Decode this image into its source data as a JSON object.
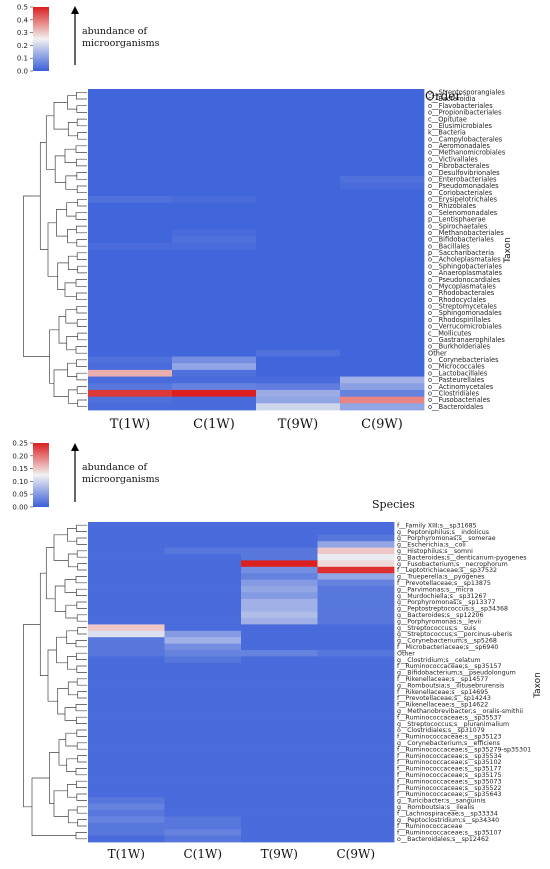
{
  "chart_data": [
    {
      "type": "heatmap",
      "title": "Order",
      "ylabel": "Taxon",
      "legend_title": "abundance of microorganisms",
      "colorbar": {
        "ticks": [
          "0.5",
          "0.4",
          "0.3",
          "0.2",
          "0.1",
          "0.0"
        ],
        "range": [
          0,
          0.5
        ],
        "colors": [
          "#3a5fd9",
          "#f2f2f2",
          "#dc1f1f"
        ]
      },
      "columns": [
        "T(1W)",
        "C(1W)",
        "T(9W)",
        "C(9W)"
      ],
      "rows": [
        "o__Streptosporangiales",
        "c__Bacteroidia",
        "o__Flavobacteriales",
        "o__Propionibacteriales",
        "c__Opitutae",
        "o__Elusimicrobiales",
        "k__Bacteria",
        "o__Campylobacterales",
        "o__Aeromonadales",
        "o__Methanomicrobiales",
        "o__Victivallales",
        "o__Fibrobacterales",
        "o__Desulfovibrionales",
        "o__Enterobacteriales",
        "o__Pseudomonadales",
        "o__Coriobacteriales",
        "o__Erysipelotrichales",
        "o__Rhizobiales",
        "o__Selenomonadales",
        "p__Lentisphaerae",
        "o__Spirochaetales",
        "o__Methanobacteriales",
        "o__Bifidobacteriales",
        "o__Bacillales",
        "p__Saccharibacteria",
        "o__Acholeplasmatales",
        "o__Sphingobacteriales",
        "o__Anaeroplasmatales",
        "o__Pseudonocardiales",
        "o__Mycoplasmatales",
        "o__Rhodobacterales",
        "o__Rhodocyclales",
        "o__Streptomycetales",
        "o__Sphingomonadales",
        "o__Rhodospirillales",
        "o__Verrucomicrobiales",
        "c__Mollicutes",
        "o__Gastranaerophilales",
        "o__Burkholderiales",
        "Other",
        "o__Corynebacteriales",
        "o__Micrococcales",
        "o__Lactobacillales",
        "o__Pasteurellales",
        "o__Actinomycetales",
        "o__Clostridiales",
        "o__Fusobacteriales",
        "o__Bacteroidales"
      ],
      "values": [
        [
          0.01,
          0.01,
          0.01,
          0.01
        ],
        [
          0.01,
          0.01,
          0.01,
          0.01
        ],
        [
          0.01,
          0.01,
          0.01,
          0.01
        ],
        [
          0.01,
          0.01,
          0.01,
          0.01
        ],
        [
          0.01,
          0.01,
          0.01,
          0.01
        ],
        [
          0.01,
          0.01,
          0.01,
          0.01
        ],
        [
          0.01,
          0.01,
          0.01,
          0.01
        ],
        [
          0.01,
          0.01,
          0.01,
          0.01
        ],
        [
          0.01,
          0.01,
          0.01,
          0.01
        ],
        [
          0.01,
          0.01,
          0.01,
          0.01
        ],
        [
          0.01,
          0.01,
          0.01,
          0.01
        ],
        [
          0.01,
          0.01,
          0.01,
          0.01
        ],
        [
          0.01,
          0.01,
          0.01,
          0.01
        ],
        [
          0.01,
          0.01,
          0.01,
          0.03
        ],
        [
          0.01,
          0.01,
          0.01,
          0.02
        ],
        [
          0.01,
          0.01,
          0.01,
          0.01
        ],
        [
          0.03,
          0.02,
          0.01,
          0.01
        ],
        [
          0.01,
          0.01,
          0.01,
          0.01
        ],
        [
          0.01,
          0.01,
          0.01,
          0.01
        ],
        [
          0.01,
          0.01,
          0.01,
          0.01
        ],
        [
          0.01,
          0.01,
          0.01,
          0.01
        ],
        [
          0.01,
          0.02,
          0.01,
          0.01
        ],
        [
          0.01,
          0.03,
          0.01,
          0.01
        ],
        [
          0.02,
          0.02,
          0.01,
          0.01
        ],
        [
          0.01,
          0.01,
          0.01,
          0.01
        ],
        [
          0.01,
          0.01,
          0.01,
          0.01
        ],
        [
          0.01,
          0.01,
          0.01,
          0.01
        ],
        [
          0.01,
          0.01,
          0.01,
          0.01
        ],
        [
          0.01,
          0.01,
          0.01,
          0.01
        ],
        [
          0.01,
          0.01,
          0.01,
          0.01
        ],
        [
          0.01,
          0.01,
          0.01,
          0.01
        ],
        [
          0.01,
          0.01,
          0.01,
          0.01
        ],
        [
          0.01,
          0.01,
          0.01,
          0.01
        ],
        [
          0.01,
          0.01,
          0.01,
          0.01
        ],
        [
          0.01,
          0.01,
          0.01,
          0.01
        ],
        [
          0.01,
          0.01,
          0.01,
          0.01
        ],
        [
          0.01,
          0.01,
          0.01,
          0.01
        ],
        [
          0.01,
          0.01,
          0.01,
          0.01
        ],
        [
          0.01,
          0.01,
          0.01,
          0.01
        ],
        [
          0.01,
          0.01,
          0.03,
          0.01
        ],
        [
          0.03,
          0.08,
          0.01,
          0.01
        ],
        [
          0.02,
          0.12,
          0.01,
          0.01
        ],
        [
          0.33,
          0.03,
          0.01,
          0.01
        ],
        [
          0.02,
          0.02,
          0.02,
          0.14
        ],
        [
          0.04,
          0.06,
          0.05,
          0.11
        ],
        [
          0.47,
          0.5,
          0.13,
          0.06
        ],
        [
          0.03,
          0.02,
          0.12,
          0.38
        ],
        [
          0.02,
          0.02,
          0.2,
          0.12
        ]
      ]
    },
    {
      "type": "heatmap",
      "title": "Species",
      "ylabel": "Taxon",
      "legend_title": "abundance of microorganisms",
      "colorbar": {
        "ticks": [
          "0.25",
          "0.20",
          "0.15",
          "0.10",
          "0.05",
          "0.00"
        ],
        "range": [
          0,
          0.25
        ],
        "colors": [
          "#3a5fd9",
          "#f2f2f2",
          "#dc1f1f"
        ]
      },
      "columns": [
        "T(1W)",
        "C(1W)",
        "T(9W)",
        "C(9W)"
      ],
      "rows": [
        "f__Family XIII;s__sp31685",
        "g__Peptoniphilus;s__indolicus",
        "g__Porphyromonas;s__somerae",
        "g__Escherichia;s__coli",
        "g__Histophilus;s__somni",
        "g__Bacteroides;s__denticanum-pyogenes",
        "g__Fusobacterium;s__necrophorum",
        "f__Leptotrichiaceae;s__sp37532",
        "g__Trueperella;s__pyogenes",
        "f__Prevotellaceae;s__sp13875",
        "g__Parvimonas;s__micra",
        "g__Murdochiella;s__sp31267",
        "g__Porphyromonas;s__sp13377",
        "g__Peptostreptococcus;s__sp34368",
        "g__Bacteroides;s__sp12206",
        "g__Porphyromonas;s__levii",
        "g__Streptococcus;s__suis",
        "g__Streptococcus;s__porcinus-uberis",
        "g__Corynebacterium;s__sp5268",
        "f__Microbacteriaceae;s__sp6940",
        "Other",
        "g__Clostridium;s__celatum",
        "f__Ruminococcaceae;s__sp35157",
        "g__Bifidobacterium;s__pseudolongum",
        "f__Rikenellaceae;s__sp14577",
        "g__Romboutsia;s__ilitusebrurensis",
        "f__Rikenellaceae;s__sp14695",
        "f__Prevotellaceae;s__sp14243",
        "f__Rikenellaceae;s__sp14622",
        "g__Methanobrevibacter;s__oralis-smithii",
        "f__Ruminococcaceae;s__sp35537",
        "g__Streptococcus;s__pluranimalium",
        "o__Clostridiales;s__sp31079",
        "f__Ruminococcaceae;s__sp35123",
        "g__Corynebacterium;s__efficiens",
        "f__Ruminococcaceae;s__sp35279-sp35301",
        "f__Ruminococcaceae;s__sp35534",
        "f__Ruminococcaceae;s__sp35102",
        "f__Ruminococcaceae;s__sp35177",
        "f__Ruminococcaceae;s__sp35175",
        "f__Ruminococcaceae;s__sp35073",
        "f__Ruminococcaceae;s__sp35522",
        "f__Ruminococcaceae;s__sp35643",
        "g__Turicibacter;s__sanguinis",
        "g__Romboutsia;s__ilealis",
        "f__Lachnospiraceae;s__sp33334",
        "g__Peptoclostridium;s__sp34340",
        "f__Ruminococcaceae",
        "f__Ruminococcaceae;s__sp35107",
        "o__Bacteroidales;s__sp12462"
      ],
      "values": [
        [
          0.01,
          0.01,
          0.01,
          0.01
        ],
        [
          0.01,
          0.01,
          0.01,
          0.01
        ],
        [
          0.01,
          0.01,
          0.01,
          0.02
        ],
        [
          0.01,
          0.01,
          0.01,
          0.06
        ],
        [
          0.01,
          0.02,
          0.02,
          0.15
        ],
        [
          0.01,
          0.01,
          0.02,
          0.12
        ],
        [
          0.01,
          0.01,
          0.25,
          0.14
        ],
        [
          0.01,
          0.01,
          0.04,
          0.24
        ],
        [
          0.01,
          0.01,
          0.03,
          0.06
        ],
        [
          0.01,
          0.01,
          0.05,
          0.03
        ],
        [
          0.01,
          0.01,
          0.06,
          0.02
        ],
        [
          0.01,
          0.01,
          0.05,
          0.02
        ],
        [
          0.01,
          0.01,
          0.07,
          0.02
        ],
        [
          0.01,
          0.01,
          0.07,
          0.02
        ],
        [
          0.01,
          0.01,
          0.08,
          0.02
        ],
        [
          0.01,
          0.01,
          0.07,
          0.02
        ],
        [
          0.15,
          0.01,
          0.01,
          0.01
        ],
        [
          0.11,
          0.05,
          0.01,
          0.01
        ],
        [
          0.02,
          0.07,
          0.01,
          0.01
        ],
        [
          0.02,
          0.04,
          0.01,
          0.01
        ],
        [
          0.02,
          0.03,
          0.03,
          0.02
        ],
        [
          0.01,
          0.02,
          0.01,
          0.01
        ],
        [
          0.01,
          0.01,
          0.01,
          0.01
        ],
        [
          0.01,
          0.01,
          0.01,
          0.01
        ],
        [
          0.01,
          0.01,
          0.01,
          0.01
        ],
        [
          0.01,
          0.01,
          0.01,
          0.01
        ],
        [
          0.01,
          0.01,
          0.01,
          0.01
        ],
        [
          0.01,
          0.01,
          0.01,
          0.01
        ],
        [
          0.01,
          0.01,
          0.01,
          0.01
        ],
        [
          0.01,
          0.01,
          0.01,
          0.01
        ],
        [
          0.01,
          0.01,
          0.01,
          0.01
        ],
        [
          0.01,
          0.01,
          0.01,
          0.01
        ],
        [
          0.01,
          0.01,
          0.01,
          0.01
        ],
        [
          0.01,
          0.01,
          0.01,
          0.01
        ],
        [
          0.01,
          0.01,
          0.01,
          0.01
        ],
        [
          0.01,
          0.01,
          0.01,
          0.01
        ],
        [
          0.01,
          0.01,
          0.01,
          0.01
        ],
        [
          0.01,
          0.01,
          0.01,
          0.01
        ],
        [
          0.01,
          0.01,
          0.01,
          0.01
        ],
        [
          0.01,
          0.01,
          0.01,
          0.01
        ],
        [
          0.01,
          0.01,
          0.01,
          0.01
        ],
        [
          0.01,
          0.01,
          0.01,
          0.01
        ],
        [
          0.01,
          0.01,
          0.01,
          0.01
        ],
        [
          0.02,
          0.01,
          0.01,
          0.01
        ],
        [
          0.03,
          0.01,
          0.01,
          0.01
        ],
        [
          0.02,
          0.01,
          0.01,
          0.01
        ],
        [
          0.03,
          0.02,
          0.01,
          0.01
        ],
        [
          0.02,
          0.02,
          0.01,
          0.01
        ],
        [
          0.02,
          0.03,
          0.01,
          0.01
        ],
        [
          0.01,
          0.02,
          0.01,
          0.01
        ]
      ]
    }
  ]
}
